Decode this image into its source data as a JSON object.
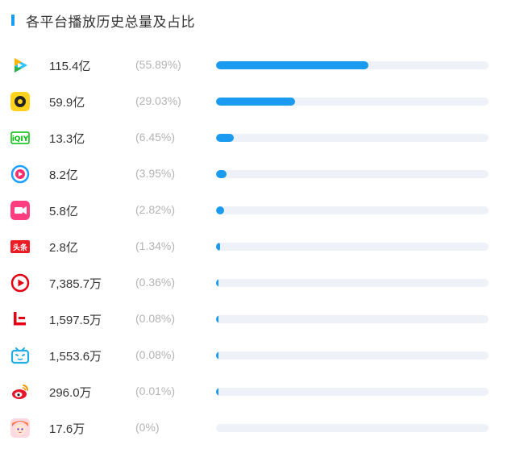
{
  "header": {
    "title": "各平台播放历史总量及占比"
  },
  "colors": {
    "accent": "#1a9bef",
    "track": "#eef2f8",
    "percent_text": "#b3b3b3"
  },
  "chart_data": {
    "type": "bar",
    "orientation": "horizontal",
    "title": "各平台播放历史总量及占比",
    "rows": [
      {
        "icon": "tencent-video-icon",
        "value_label": "115.4亿",
        "percent_label": "(55.89%)",
        "percent": 55.89
      },
      {
        "icon": "yellow-lens-app-icon",
        "value_label": "59.9亿",
        "percent_label": "(29.03%)",
        "percent": 29.03
      },
      {
        "icon": "iqiyi-icon",
        "value_label": "13.3亿",
        "percent_label": "(6.45%)",
        "percent": 6.45
      },
      {
        "icon": "youku-icon",
        "value_label": "8.2亿",
        "percent_label": "(3.95%)",
        "percent": 3.95
      },
      {
        "icon": "pink-video-app-icon",
        "value_label": "5.8亿",
        "percent_label": "(2.82%)",
        "percent": 2.82
      },
      {
        "icon": "toutiao-icon",
        "logo_text": "头条",
        "value_label": "2.8亿",
        "percent_label": "(1.34%)",
        "percent": 1.34
      },
      {
        "icon": "red-play-app-icon",
        "value_label": "7,385.7万",
        "percent_label": "(0.36%)",
        "percent": 0.36
      },
      {
        "icon": "letv-icon",
        "value_label": "1,597.5万",
        "percent_label": "(0.08%)",
        "percent": 0.08
      },
      {
        "icon": "bilibili-icon",
        "value_label": "1,553.6万",
        "percent_label": "(0.08%)",
        "percent": 0.08
      },
      {
        "icon": "weibo-icon",
        "value_label": "296.0万",
        "percent_label": "(0.01%)",
        "percent": 0.01
      },
      {
        "icon": "anime-avatar-icon",
        "value_label": "17.6万",
        "percent_label": "(0%)",
        "percent": 0
      }
    ]
  }
}
